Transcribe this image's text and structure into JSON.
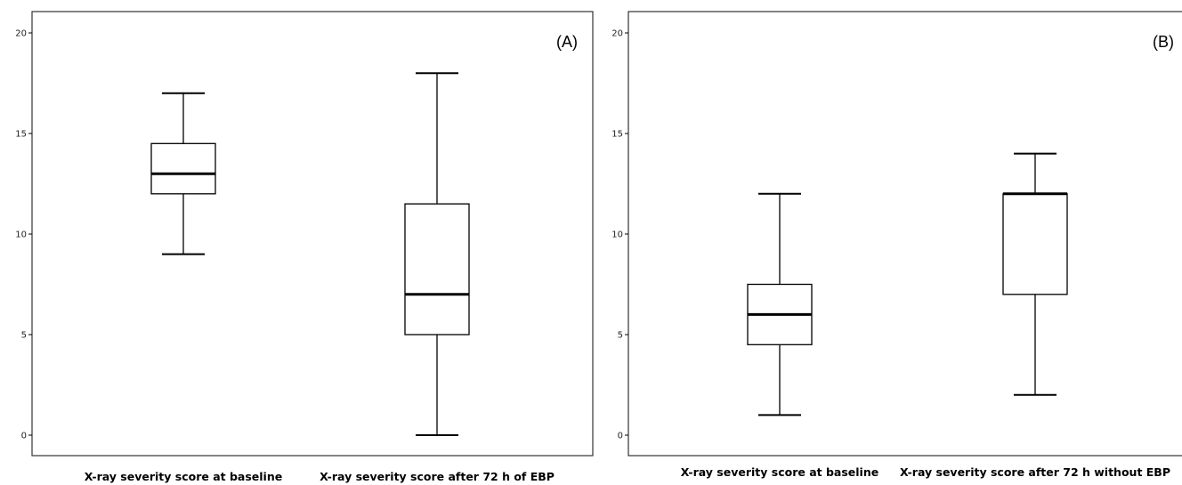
{
  "chart_data": [
    {
      "type": "boxplot",
      "panel_label": "(A)",
      "ylim": [
        0,
        20
      ],
      "yticks": [
        0,
        5,
        10,
        15,
        20
      ],
      "grid": false,
      "categories": [
        "X-ray severity score at baseline",
        "X-ray severity score after 72 h of EBP"
      ],
      "boxes": [
        {
          "min": 9,
          "q1": 12,
          "median": 13,
          "q3": 14.5,
          "max": 17
        },
        {
          "min": 0,
          "q1": 5,
          "median": 7,
          "q3": 11.5,
          "max": 18
        }
      ]
    },
    {
      "type": "boxplot",
      "panel_label": "(B)",
      "ylim": [
        0,
        20
      ],
      "yticks": [
        0,
        5,
        10,
        15,
        20
      ],
      "grid": false,
      "categories": [
        "X-ray severity score at baseline",
        "X-ray severity score after 72 h without EBP"
      ],
      "boxes": [
        {
          "min": 1,
          "q1": 4.5,
          "median": 6,
          "q3": 7.5,
          "max": 12
        },
        {
          "min": 2,
          "q1": 7,
          "median": 12,
          "q3": 12,
          "max": 14
        }
      ]
    }
  ]
}
